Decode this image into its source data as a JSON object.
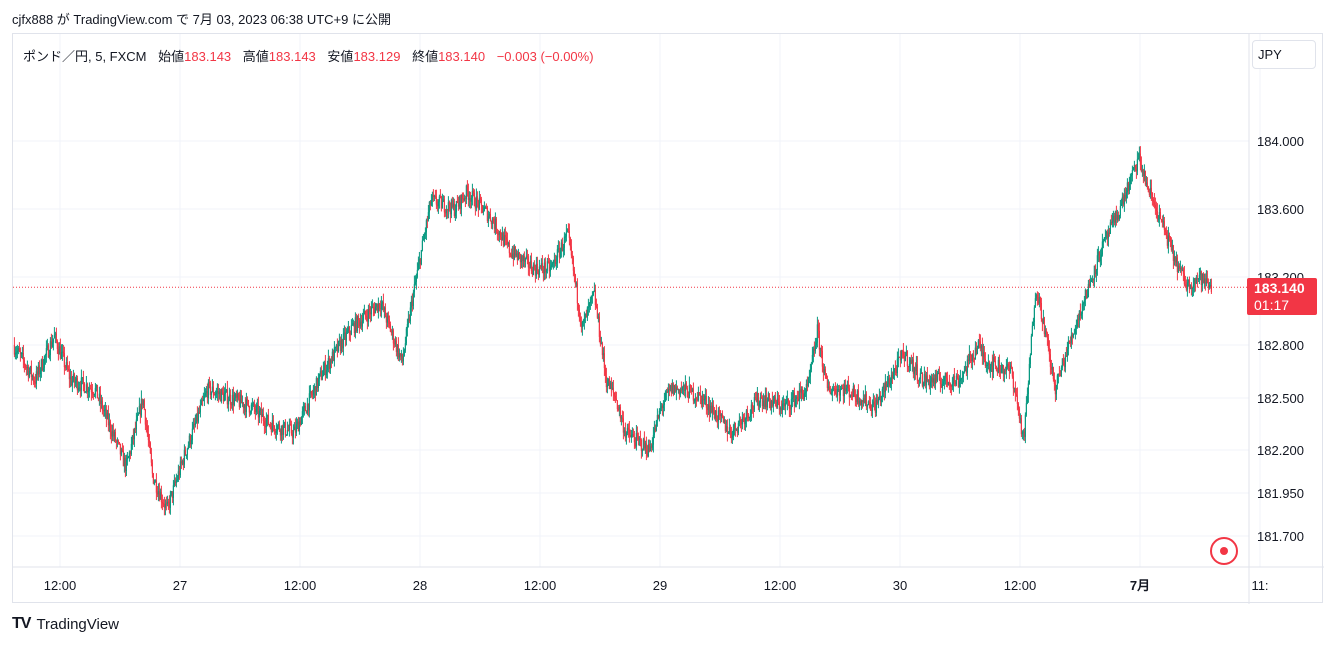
{
  "caption": "cjfx888 が TradingView.com で 7月 03, 2023 06:38 UTC+9 に公開",
  "legend": {
    "symbol": "ポンド／円, 5, FXCM",
    "open_label": "始値",
    "open": "183.143",
    "high_label": "高値",
    "high": "183.143",
    "low_label": "安値",
    "low": "183.129",
    "close_label": "終値",
    "close": "183.140",
    "change": "−0.003 (−0.00%)"
  },
  "currency_button": "JPY",
  "price_badge": {
    "price": "183.140",
    "countdown": "01:17"
  },
  "footer": {
    "logo": "TV",
    "brand": "TradingView"
  },
  "colors": {
    "up": "#089981",
    "down": "#f23645",
    "grid": "#f0f3fa",
    "text": "#131722",
    "price_line": "#f23645"
  },
  "chart_data": {
    "type": "candlestick",
    "symbol": "ポンド／円",
    "interval": "5",
    "source": "FXCM",
    "last_price": 183.14,
    "y_ticks": [
      {
        "value": 184.0,
        "label": "184.000"
      },
      {
        "value": 183.6,
        "label": "183.600"
      },
      {
        "value": 183.2,
        "label": "183.200"
      },
      {
        "value": 182.8,
        "label": "182.800"
      },
      {
        "value": 182.5,
        "label": "182.500"
      },
      {
        "value": 182.2,
        "label": "182.200"
      },
      {
        "value": 181.95,
        "label": "181.950"
      },
      {
        "value": 181.7,
        "label": "181.700"
      }
    ],
    "x_ticks": [
      {
        "t": 0.5,
        "label": "12:00",
        "bold": false
      },
      {
        "t": 1.0,
        "label": "27",
        "bold": false
      },
      {
        "t": 1.5,
        "label": "12:00",
        "bold": false
      },
      {
        "t": 2.0,
        "label": "28",
        "bold": false
      },
      {
        "t": 2.5,
        "label": "12:00",
        "bold": false
      },
      {
        "t": 3.0,
        "label": "29",
        "bold": false
      },
      {
        "t": 3.5,
        "label": "12:00",
        "bold": false
      },
      {
        "t": 4.0,
        "label": "30",
        "bold": false
      },
      {
        "t": 4.5,
        "label": "12:00",
        "bold": false
      },
      {
        "t": 5.0,
        "label": "7月",
        "bold": true
      },
      {
        "t": 5.5,
        "label": "11:",
        "bold": false
      }
    ],
    "path_t": [
      0.31,
      0.4,
      0.48,
      0.55,
      0.65,
      0.78,
      0.85,
      0.89,
      0.95,
      1.03,
      1.12,
      1.3,
      1.38,
      1.48,
      1.6,
      1.72,
      1.84,
      1.93,
      1.97,
      2.05,
      2.15,
      2.2,
      2.3,
      2.38,
      2.48,
      2.55,
      2.62,
      2.68,
      2.73,
      2.78,
      2.82,
      2.86,
      2.96,
      3.01,
      3.05,
      3.1,
      3.18,
      3.3,
      3.42,
      3.52,
      3.62,
      3.66,
      3.7,
      3.78,
      3.9,
      4.02,
      4.1,
      4.25,
      4.33,
      4.37,
      4.47,
      4.52,
      4.57,
      4.6,
      4.65,
      4.72,
      4.84,
      4.92,
      5.0,
      5.03,
      5.1,
      5.15,
      5.2,
      5.25,
      5.3
    ],
    "path_v": [
      182.8,
      182.6,
      182.85,
      182.6,
      182.55,
      182.1,
      182.5,
      182.05,
      181.85,
      182.2,
      182.55,
      182.45,
      182.35,
      182.3,
      182.65,
      182.9,
      183.05,
      182.7,
      183.05,
      183.65,
      183.6,
      183.7,
      183.55,
      183.35,
      183.25,
      183.25,
      183.45,
      182.9,
      183.1,
      182.6,
      182.5,
      182.3,
      182.2,
      182.45,
      182.55,
      182.55,
      182.5,
      182.3,
      182.5,
      182.45,
      182.55,
      182.88,
      182.55,
      182.55,
      182.45,
      182.75,
      182.6,
      182.6,
      182.8,
      182.7,
      182.65,
      182.25,
      183.15,
      182.95,
      182.55,
      182.85,
      183.35,
      183.6,
      183.9,
      183.75,
      183.5,
      183.3,
      183.15,
      183.2,
      183.14
    ]
  }
}
